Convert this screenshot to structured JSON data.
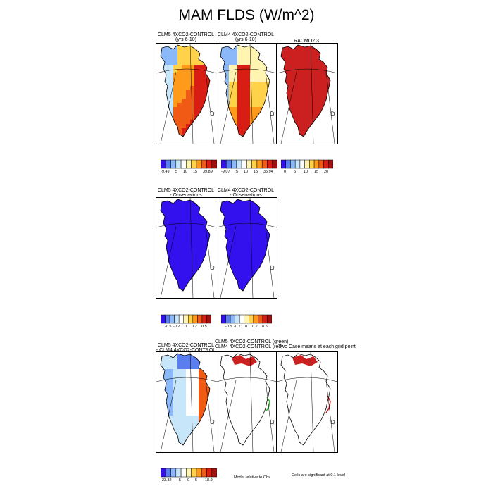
{
  "figure": {
    "title": "MAM FLDS (W/m^2)",
    "row1": {
      "panel_titles": [
        [
          "CLM5 4XCO2-CONTROL",
          "(yrs 6-10)"
        ],
        [
          "CLM4 4XCO2-CONTROL",
          "(yrs 6-10)"
        ],
        [
          "RACMO2.3"
        ]
      ],
      "colorbar_labels": [
        [
          "-9.49",
          "5",
          "10",
          "15",
          "39.89"
        ],
        [
          "-9.07",
          "5",
          "10",
          "15",
          "35.94"
        ],
        [
          "0",
          "5",
          "10",
          "15",
          "20"
        ]
      ]
    },
    "row2": {
      "panel_titles": [
        [
          "CLM5 4XCO2-CONTROL",
          "- Observations"
        ],
        [
          "CLM4 4XCO2-CONTROL",
          "- Observations"
        ]
      ],
      "colorbar_labels": [
        [
          "-0.5",
          "-0.2",
          "0",
          "0.2",
          "0.5"
        ],
        [
          "-0.5",
          "-0.2",
          "0",
          "0.2",
          "0.5"
        ]
      ]
    },
    "row3": {
      "panel_titles": [
        [
          "CLM5 4XCO2-CONTROL",
          "- CLM4 4XCO2-CONTROL"
        ],
        [
          "CLM5 4XCO2-CONTROL (green)",
          "CLM4 4XCO2-CONTROL (red)"
        ],
        [
          "Two Case means at each grid point"
        ]
      ],
      "colorbar_labels": [
        "-23.82",
        "-5",
        "0",
        "5",
        "18.9"
      ],
      "notes": [
        "Model relative to Obs",
        "Cells are significant at 0.1 level"
      ]
    }
  },
  "colors": {
    "red_fill": "#cc2020",
    "blue_fill": "#3311ee",
    "green_line": "#22bb22",
    "outline": "#000000"
  },
  "chart_data": [
    {
      "type": "heatmap",
      "title": "CLM5 4XCO2-CONTROL (yrs 6-10)",
      "colorbar": {
        "min": -9.49,
        "max": 39.89,
        "ticks": [
          5,
          10,
          15
        ]
      }
    },
    {
      "type": "heatmap",
      "title": "CLM4 4XCO2-CONTROL (yrs 6-10)",
      "colorbar": {
        "min": -9.07,
        "max": 35.94,
        "ticks": [
          5,
          10,
          15
        ]
      }
    },
    {
      "type": "heatmap",
      "title": "RACMO2.3",
      "colorbar": {
        "min": 0,
        "max": 20,
        "ticks": [
          0,
          5,
          10,
          15,
          20
        ]
      }
    },
    {
      "type": "heatmap",
      "title": "CLM5 4XCO2-CONTROL - Observations",
      "colorbar": {
        "ticks": [
          -0.5,
          -0.2,
          0,
          0.2,
          0.5
        ]
      }
    },
    {
      "type": "heatmap",
      "title": "CLM4 4XCO2-CONTROL - Observations",
      "colorbar": {
        "ticks": [
          -0.5,
          -0.2,
          0,
          0.2,
          0.5
        ]
      }
    },
    {
      "type": "heatmap",
      "title": "CLM5 4XCO2-CONTROL - CLM4 4XCO2-CONTROL",
      "colorbar": {
        "min": -23.82,
        "max": 18.9,
        "ticks": [
          -5,
          0,
          5
        ]
      }
    }
  ]
}
